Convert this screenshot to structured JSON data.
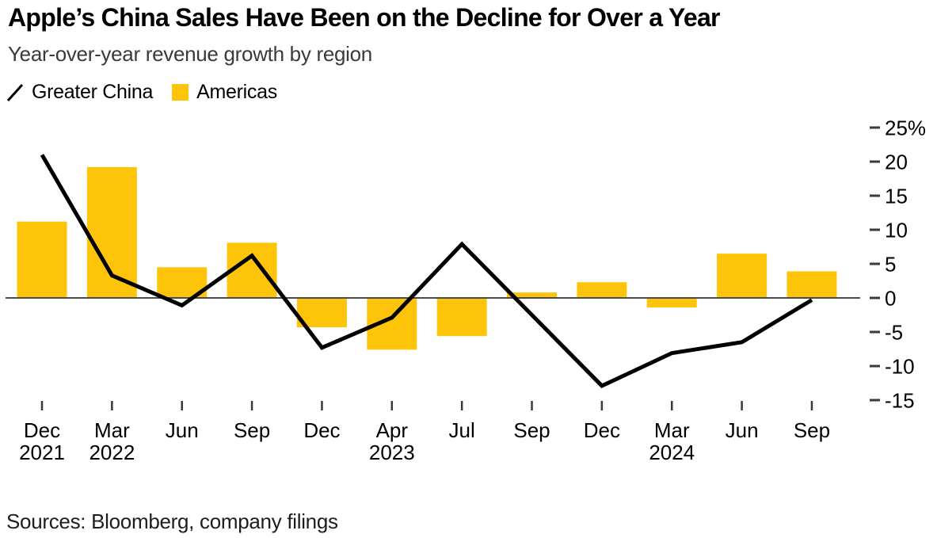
{
  "header": {
    "title": "Apple’s China Sales Have Been on the Decline for Over a Year",
    "subtitle": "Year-over-year revenue growth by region"
  },
  "footer": {
    "source": "Sources: Bloomberg, company filings"
  },
  "colors": {
    "bar_fill": "#FDC40A",
    "line_stroke": "#000000",
    "zero_line": "#4a4a4a",
    "tick_mark": "#3a3a3a"
  },
  "chart_data": {
    "type": "bar+line",
    "title": "Apple’s China Sales Have Been on the Decline for Over a Year",
    "subtitle": "Year-over-year revenue growth by region",
    "xlabel": "",
    "ylabel": "",
    "unit": "%",
    "grid": false,
    "legend_position": "top-left",
    "categories": [
      "Dec",
      "Mar",
      "Jun",
      "Sep",
      "Dec",
      "Apr",
      "Jul",
      "Sep",
      "Dec",
      "Mar",
      "Jun",
      "Sep"
    ],
    "category_years": [
      "2021",
      "2022",
      "",
      "",
      "",
      "2023",
      "",
      "",
      "",
      "2024",
      "",
      ""
    ],
    "series": [
      {
        "name": "Greater China",
        "type": "line",
        "color": "#000000",
        "values": [
          21.0,
          3.3,
          -1.1,
          6.2,
          -7.3,
          -2.9,
          7.9,
          -2.5,
          -12.9,
          -8.1,
          -6.5,
          -0.3
        ]
      },
      {
        "name": "Americas",
        "type": "bar",
        "color": "#FDC40A",
        "values": [
          11.2,
          19.2,
          4.5,
          8.1,
          -4.3,
          -7.6,
          -5.6,
          0.8,
          2.3,
          -1.4,
          6.5,
          3.9
        ]
      }
    ],
    "y_axis": {
      "side": "right",
      "tick_values": [
        25,
        20,
        15,
        10,
        5,
        0,
        -5,
        -10,
        -15
      ],
      "tick_labels": [
        "25%",
        "20",
        "15",
        "10",
        "5",
        "0",
        "-5",
        "-10",
        "-15"
      ],
      "ylim": [
        -16,
        26
      ]
    }
  }
}
